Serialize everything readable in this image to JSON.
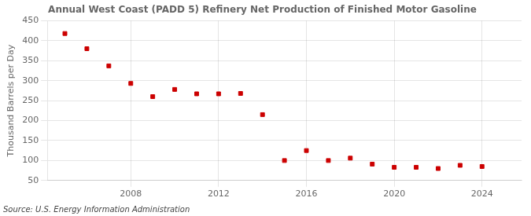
{
  "chart_data": {
    "type": "scatter",
    "title": "Annual West Coast (PADD 5) Refinery Net Production of Finished Motor Gasoline",
    "ylabel": "Thousand Barrels per Day",
    "annotations": [
      "Source: U.S. Energy Information Administration"
    ],
    "x": [
      2005,
      2006,
      2007,
      2008,
      2009,
      2010,
      2011,
      2012,
      2013,
      2014,
      2015,
      2016,
      2017,
      2018,
      2019,
      2020,
      2021,
      2022,
      2023,
      2024
    ],
    "values": [
      418,
      380,
      337,
      293,
      260,
      278,
      267,
      267,
      268,
      215,
      100,
      125,
      100,
      106,
      91,
      83,
      83,
      80,
      88,
      85
    ],
    "color": "#cc0000",
    "marker": "square",
    "xlim": [
      2004.2,
      2025.8
    ],
    "xticks": [
      2008,
      2012,
      2016,
      2020,
      2024
    ],
    "ylim": [
      50,
      450
    ],
    "yticks": [
      50,
      100,
      150,
      200,
      250,
      300,
      350,
      400,
      450
    ],
    "grid": true
  }
}
